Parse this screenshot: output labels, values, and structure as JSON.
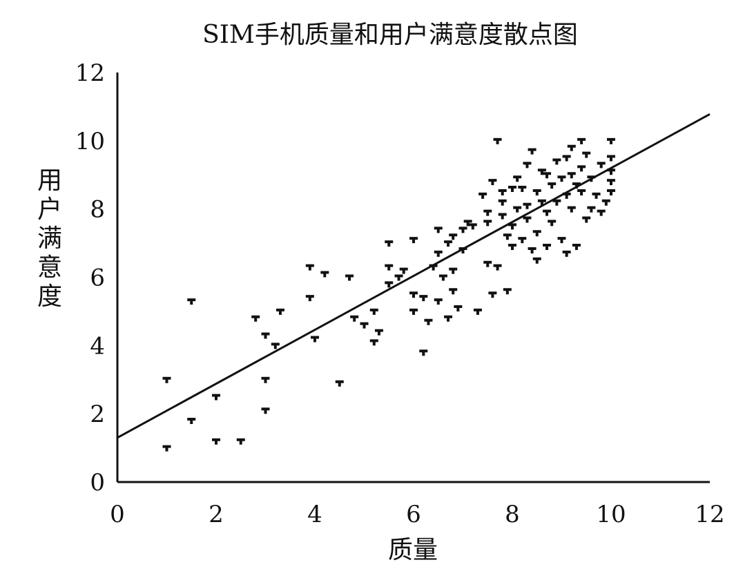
{
  "chart_data": {
    "type": "scatter",
    "title": "SIM手机质量和用户满意度散点图",
    "xlabel": "质量",
    "ylabel": "用户满意度",
    "xlim": [
      0,
      12
    ],
    "ylim": [
      0,
      12
    ],
    "x_ticks": [
      "0",
      "2",
      "4",
      "6",
      "8",
      "10",
      "12"
    ],
    "y_ticks": [
      "0",
      "2",
      "4",
      "6",
      "8",
      "10",
      "12"
    ],
    "grid": false,
    "legend": "none",
    "trendline": {
      "intercept": 1.3,
      "slope": 0.79
    },
    "points": [
      [
        1.0,
        3.0
      ],
      [
        1.0,
        1.0
      ],
      [
        1.5,
        5.3
      ],
      [
        1.5,
        1.8
      ],
      [
        2.0,
        2.5
      ],
      [
        2.0,
        1.2
      ],
      [
        2.5,
        1.2
      ],
      [
        2.8,
        4.8
      ],
      [
        3.0,
        4.3
      ],
      [
        3.0,
        3.0
      ],
      [
        3.0,
        2.1
      ],
      [
        3.2,
        4.0
      ],
      [
        3.3,
        5.0
      ],
      [
        3.9,
        6.3
      ],
      [
        3.9,
        5.4
      ],
      [
        4.0,
        4.2
      ],
      [
        4.2,
        6.1
      ],
      [
        4.5,
        2.9
      ],
      [
        4.7,
        6.0
      ],
      [
        4.8,
        4.8
      ],
      [
        5.0,
        4.6
      ],
      [
        5.2,
        5.0
      ],
      [
        5.2,
        4.1
      ],
      [
        5.3,
        4.4
      ],
      [
        5.5,
        7.0
      ],
      [
        5.5,
        6.3
      ],
      [
        5.5,
        5.8
      ],
      [
        5.7,
        6.0
      ],
      [
        5.8,
        6.2
      ],
      [
        6.0,
        7.1
      ],
      [
        6.0,
        5.5
      ],
      [
        6.0,
        5.0
      ],
      [
        6.2,
        5.4
      ],
      [
        6.2,
        3.8
      ],
      [
        6.3,
        4.7
      ],
      [
        6.4,
        6.3
      ],
      [
        6.5,
        7.4
      ],
      [
        6.5,
        6.7
      ],
      [
        6.5,
        5.3
      ],
      [
        6.6,
        6.0
      ],
      [
        6.7,
        4.8
      ],
      [
        6.8,
        7.2
      ],
      [
        6.8,
        6.2
      ],
      [
        6.8,
        5.6
      ],
      [
        6.9,
        5.1
      ],
      [
        7.0,
        6.8
      ],
      [
        7.0,
        7.4
      ],
      [
        7.2,
        7.5
      ],
      [
        7.3,
        5.0
      ],
      [
        7.4,
        8.4
      ],
      [
        7.5,
        7.6
      ],
      [
        7.5,
        6.4
      ],
      [
        7.6,
        8.8
      ],
      [
        7.6,
        5.5
      ],
      [
        7.7,
        10.0
      ],
      [
        7.7,
        6.3
      ],
      [
        7.8,
        8.2
      ],
      [
        7.8,
        7.8
      ],
      [
        7.9,
        7.2
      ],
      [
        7.9,
        5.6
      ],
      [
        8.0,
        8.6
      ],
      [
        8.0,
        7.5
      ],
      [
        8.0,
        6.9
      ],
      [
        8.1,
        8.9
      ],
      [
        8.1,
        8.0
      ],
      [
        8.2,
        7.1
      ],
      [
        8.3,
        9.3
      ],
      [
        8.3,
        8.1
      ],
      [
        8.3,
        7.7
      ],
      [
        8.4,
        6.8
      ],
      [
        8.4,
        9.7
      ],
      [
        8.5,
        8.5
      ],
      [
        8.5,
        7.3
      ],
      [
        8.5,
        6.5
      ],
      [
        8.6,
        9.1
      ],
      [
        8.6,
        8.2
      ],
      [
        8.7,
        7.9
      ],
      [
        8.7,
        6.9
      ],
      [
        8.8,
        8.7
      ],
      [
        8.8,
        7.6
      ],
      [
        8.9,
        9.4
      ],
      [
        8.9,
        8.2
      ],
      [
        9.0,
        8.9
      ],
      [
        9.0,
        7.1
      ],
      [
        9.1,
        9.5
      ],
      [
        9.1,
        8.4
      ],
      [
        9.1,
        6.7
      ],
      [
        9.2,
        9.0
      ],
      [
        9.2,
        8.0
      ],
      [
        9.3,
        8.7
      ],
      [
        9.3,
        6.9
      ],
      [
        9.4,
        10.0
      ],
      [
        9.4,
        9.2
      ],
      [
        9.4,
        8.5
      ],
      [
        9.5,
        7.7
      ],
      [
        9.5,
        9.6
      ],
      [
        9.6,
        8.9
      ],
      [
        9.7,
        8.4
      ],
      [
        9.8,
        9.3
      ],
      [
        9.8,
        7.9
      ],
      [
        10.0,
        10.0
      ],
      [
        10.0,
        9.5
      ],
      [
        10.0,
        8.8
      ],
      [
        10.0,
        9.1
      ],
      [
        10.0,
        8.5
      ],
      [
        9.9,
        8.2
      ],
      [
        9.6,
        8.0
      ],
      [
        9.2,
        9.8
      ],
      [
        8.7,
        9.0
      ],
      [
        8.2,
        8.6
      ],
      [
        7.8,
        8.5
      ],
      [
        7.5,
        7.9
      ],
      [
        7.1,
        7.6
      ],
      [
        6.7,
        7.0
      ]
    ]
  }
}
